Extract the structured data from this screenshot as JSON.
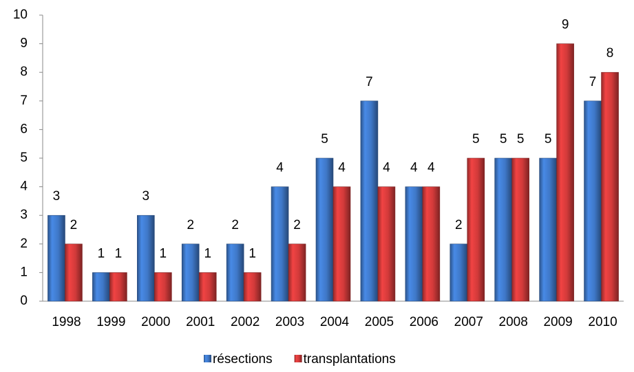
{
  "chart_data": {
    "type": "bar",
    "categories": [
      "1998",
      "1999",
      "2000",
      "2001",
      "2002",
      "2003",
      "2004",
      "2005",
      "2006",
      "2007",
      "2008",
      "2009",
      "2010"
    ],
    "series": [
      {
        "name": "résections",
        "color": "#3f78c8",
        "values": [
          3,
          1,
          3,
          2,
          2,
          4,
          5,
          7,
          4,
          2,
          5,
          5,
          7
        ]
      },
      {
        "name": "transplantations",
        "color": "#d23a3a",
        "values": [
          2,
          1,
          1,
          1,
          1,
          2,
          4,
          4,
          4,
          5,
          5,
          9,
          8
        ]
      }
    ],
    "ylim": [
      0,
      10
    ],
    "yticks": [
      0,
      1,
      2,
      3,
      4,
      5,
      6,
      7,
      8,
      9,
      10
    ],
    "grid": false,
    "legend": "bottom"
  }
}
